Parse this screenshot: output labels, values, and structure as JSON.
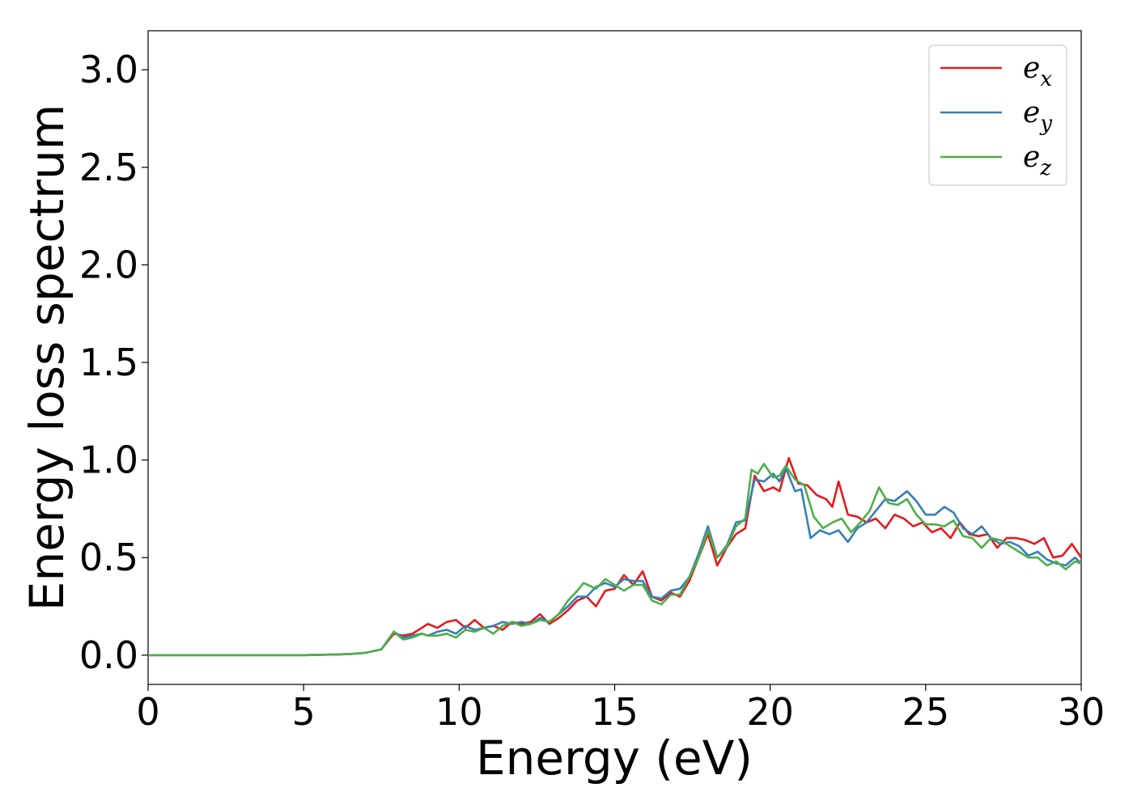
{
  "chart_data": {
    "type": "line",
    "title": "",
    "xlabel": "Energy (eV)",
    "ylabel": "Energy loss spectrum",
    "xlim": [
      0,
      30
    ],
    "ylim": [
      -0.15,
      3.2
    ],
    "xticks": [
      0,
      5,
      10,
      15,
      20,
      25,
      30
    ],
    "xtick_labels": [
      "0",
      "5",
      "10",
      "15",
      "20",
      "25",
      "30"
    ],
    "yticks": [
      0.0,
      0.5,
      1.0,
      1.5,
      2.0,
      2.5,
      3.0
    ],
    "ytick_labels": [
      "0.0",
      "0.5",
      "1.0",
      "1.5",
      "2.0",
      "2.5",
      "3.0"
    ],
    "grid": false,
    "legend_position": "top-right",
    "series": [
      {
        "name": "e_x",
        "label_base": "e",
        "label_sub": "x",
        "color": "#e41a1c",
        "points": [
          [
            0,
            0
          ],
          [
            5,
            0
          ],
          [
            6,
            0.003
          ],
          [
            6.5,
            0.006
          ],
          [
            7,
            0.012
          ],
          [
            7.5,
            0.03
          ],
          [
            7.9,
            0.11
          ],
          [
            8.2,
            0.1
          ],
          [
            8.5,
            0.11
          ],
          [
            8.8,
            0.14
          ],
          [
            9.0,
            0.16
          ],
          [
            9.3,
            0.14
          ],
          [
            9.6,
            0.17
          ],
          [
            9.9,
            0.18
          ],
          [
            10.2,
            0.14
          ],
          [
            10.5,
            0.18
          ],
          [
            10.8,
            0.14
          ],
          [
            11.1,
            0.15
          ],
          [
            11.4,
            0.13
          ],
          [
            11.7,
            0.17
          ],
          [
            12.0,
            0.16
          ],
          [
            12.3,
            0.17
          ],
          [
            12.6,
            0.21
          ],
          [
            12.9,
            0.16
          ],
          [
            13.2,
            0.19
          ],
          [
            13.5,
            0.23
          ],
          [
            13.8,
            0.28
          ],
          [
            14.1,
            0.3
          ],
          [
            14.4,
            0.25
          ],
          [
            14.7,
            0.33
          ],
          [
            15.0,
            0.34
          ],
          [
            15.3,
            0.41
          ],
          [
            15.6,
            0.36
          ],
          [
            15.9,
            0.43
          ],
          [
            16.2,
            0.3
          ],
          [
            16.5,
            0.28
          ],
          [
            16.8,
            0.32
          ],
          [
            17.1,
            0.3
          ],
          [
            17.4,
            0.38
          ],
          [
            17.7,
            0.5
          ],
          [
            18.0,
            0.62
          ],
          [
            18.3,
            0.46
          ],
          [
            18.6,
            0.55
          ],
          [
            18.9,
            0.62
          ],
          [
            19.2,
            0.65
          ],
          [
            19.5,
            0.92
          ],
          [
            19.8,
            0.84
          ],
          [
            20.1,
            0.86
          ],
          [
            20.3,
            0.84
          ],
          [
            20.6,
            1.01
          ],
          [
            20.9,
            0.88
          ],
          [
            21.2,
            0.87
          ],
          [
            21.5,
            0.82
          ],
          [
            21.8,
            0.8
          ],
          [
            22.0,
            0.76
          ],
          [
            22.2,
            0.89
          ],
          [
            22.5,
            0.72
          ],
          [
            22.8,
            0.71
          ],
          [
            23.1,
            0.68
          ],
          [
            23.4,
            0.7
          ],
          [
            23.7,
            0.65
          ],
          [
            24.0,
            0.72
          ],
          [
            24.3,
            0.7
          ],
          [
            24.6,
            0.66
          ],
          [
            24.9,
            0.68
          ],
          [
            25.2,
            0.63
          ],
          [
            25.5,
            0.65
          ],
          [
            25.8,
            0.6
          ],
          [
            26.1,
            0.68
          ],
          [
            26.4,
            0.62
          ],
          [
            26.7,
            0.61
          ],
          [
            27.0,
            0.62
          ],
          [
            27.3,
            0.55
          ],
          [
            27.6,
            0.6
          ],
          [
            27.9,
            0.6
          ],
          [
            28.2,
            0.59
          ],
          [
            28.5,
            0.57
          ],
          [
            28.8,
            0.6
          ],
          [
            29.1,
            0.5
          ],
          [
            29.4,
            0.51
          ],
          [
            29.7,
            0.57
          ],
          [
            30.0,
            0.5
          ]
        ]
      },
      {
        "name": "e_y",
        "label_base": "e",
        "label_sub": "y",
        "color": "#377eb8",
        "points": [
          [
            0,
            0
          ],
          [
            5,
            0
          ],
          [
            6,
            0.003
          ],
          [
            6.5,
            0.006
          ],
          [
            7,
            0.012
          ],
          [
            7.5,
            0.03
          ],
          [
            7.9,
            0.12
          ],
          [
            8.2,
            0.09
          ],
          [
            8.5,
            0.1
          ],
          [
            8.8,
            0.11
          ],
          [
            9.0,
            0.1
          ],
          [
            9.3,
            0.12
          ],
          [
            9.6,
            0.13
          ],
          [
            9.9,
            0.11
          ],
          [
            10.2,
            0.15
          ],
          [
            10.5,
            0.13
          ],
          [
            10.8,
            0.14
          ],
          [
            11.1,
            0.15
          ],
          [
            11.4,
            0.17
          ],
          [
            11.7,
            0.16
          ],
          [
            12.0,
            0.17
          ],
          [
            12.3,
            0.16
          ],
          [
            12.6,
            0.19
          ],
          [
            12.9,
            0.17
          ],
          [
            13.2,
            0.21
          ],
          [
            13.5,
            0.25
          ],
          [
            13.8,
            0.3
          ],
          [
            14.1,
            0.3
          ],
          [
            14.4,
            0.35
          ],
          [
            14.7,
            0.37
          ],
          [
            15.0,
            0.35
          ],
          [
            15.3,
            0.39
          ],
          [
            15.6,
            0.38
          ],
          [
            15.9,
            0.38
          ],
          [
            16.2,
            0.3
          ],
          [
            16.5,
            0.29
          ],
          [
            16.8,
            0.33
          ],
          [
            17.1,
            0.34
          ],
          [
            17.4,
            0.4
          ],
          [
            17.7,
            0.52
          ],
          [
            18.0,
            0.66
          ],
          [
            18.3,
            0.5
          ],
          [
            18.6,
            0.56
          ],
          [
            18.9,
            0.68
          ],
          [
            19.2,
            0.69
          ],
          [
            19.5,
            0.9
          ],
          [
            19.8,
            0.89
          ],
          [
            20.1,
            0.93
          ],
          [
            20.3,
            0.89
          ],
          [
            20.5,
            0.96
          ],
          [
            20.8,
            0.84
          ],
          [
            21.0,
            0.85
          ],
          [
            21.3,
            0.6
          ],
          [
            21.6,
            0.64
          ],
          [
            21.9,
            0.62
          ],
          [
            22.2,
            0.64
          ],
          [
            22.5,
            0.58
          ],
          [
            22.8,
            0.65
          ],
          [
            23.1,
            0.68
          ],
          [
            23.4,
            0.74
          ],
          [
            23.7,
            0.8
          ],
          [
            24.0,
            0.79
          ],
          [
            24.4,
            0.84
          ],
          [
            24.7,
            0.79
          ],
          [
            25.0,
            0.72
          ],
          [
            25.3,
            0.72
          ],
          [
            25.6,
            0.76
          ],
          [
            25.9,
            0.73
          ],
          [
            26.2,
            0.65
          ],
          [
            26.5,
            0.62
          ],
          [
            26.8,
            0.66
          ],
          [
            27.1,
            0.6
          ],
          [
            27.4,
            0.57
          ],
          [
            27.7,
            0.58
          ],
          [
            28.0,
            0.56
          ],
          [
            28.3,
            0.51
          ],
          [
            28.6,
            0.53
          ],
          [
            28.9,
            0.49
          ],
          [
            29.2,
            0.47
          ],
          [
            29.5,
            0.46
          ],
          [
            29.8,
            0.5
          ],
          [
            30.0,
            0.47
          ]
        ]
      },
      {
        "name": "e_z",
        "label_base": "e",
        "label_sub": "z",
        "color": "#4daf4a",
        "points": [
          [
            0,
            0
          ],
          [
            5,
            0
          ],
          [
            6,
            0.003
          ],
          [
            6.5,
            0.006
          ],
          [
            7,
            0.012
          ],
          [
            7.5,
            0.03
          ],
          [
            7.9,
            0.12
          ],
          [
            8.2,
            0.08
          ],
          [
            8.5,
            0.09
          ],
          [
            8.8,
            0.11
          ],
          [
            9.0,
            0.1
          ],
          [
            9.3,
            0.1
          ],
          [
            9.6,
            0.11
          ],
          [
            9.9,
            0.09
          ],
          [
            10.2,
            0.13
          ],
          [
            10.5,
            0.12
          ],
          [
            10.8,
            0.14
          ],
          [
            11.1,
            0.11
          ],
          [
            11.4,
            0.15
          ],
          [
            11.7,
            0.17
          ],
          [
            12.0,
            0.15
          ],
          [
            12.3,
            0.16
          ],
          [
            12.6,
            0.18
          ],
          [
            12.9,
            0.17
          ],
          [
            13.2,
            0.21
          ],
          [
            13.5,
            0.28
          ],
          [
            13.8,
            0.33
          ],
          [
            14.0,
            0.37
          ],
          [
            14.4,
            0.34
          ],
          [
            14.7,
            0.39
          ],
          [
            15.0,
            0.36
          ],
          [
            15.3,
            0.33
          ],
          [
            15.6,
            0.36
          ],
          [
            15.9,
            0.36
          ],
          [
            16.2,
            0.28
          ],
          [
            16.5,
            0.26
          ],
          [
            16.8,
            0.31
          ],
          [
            17.1,
            0.31
          ],
          [
            17.4,
            0.4
          ],
          [
            17.7,
            0.5
          ],
          [
            18.0,
            0.64
          ],
          [
            18.3,
            0.5
          ],
          [
            18.6,
            0.55
          ],
          [
            18.9,
            0.66
          ],
          [
            19.2,
            0.7
          ],
          [
            19.4,
            0.95
          ],
          [
            19.6,
            0.93
          ],
          [
            19.8,
            0.98
          ],
          [
            20.1,
            0.91
          ],
          [
            20.3,
            0.92
          ],
          [
            20.5,
            0.97
          ],
          [
            20.8,
            0.9
          ],
          [
            21.1,
            0.87
          ],
          [
            21.4,
            0.71
          ],
          [
            21.7,
            0.65
          ],
          [
            22.0,
            0.68
          ],
          [
            22.3,
            0.7
          ],
          [
            22.6,
            0.63
          ],
          [
            22.9,
            0.68
          ],
          [
            23.2,
            0.74
          ],
          [
            23.5,
            0.86
          ],
          [
            23.8,
            0.78
          ],
          [
            24.1,
            0.77
          ],
          [
            24.4,
            0.8
          ],
          [
            24.7,
            0.72
          ],
          [
            25.0,
            0.67
          ],
          [
            25.3,
            0.67
          ],
          [
            25.6,
            0.66
          ],
          [
            25.9,
            0.69
          ],
          [
            26.2,
            0.61
          ],
          [
            26.5,
            0.6
          ],
          [
            26.8,
            0.55
          ],
          [
            27.1,
            0.6
          ],
          [
            27.4,
            0.59
          ],
          [
            27.7,
            0.56
          ],
          [
            28.0,
            0.53
          ],
          [
            28.3,
            0.5
          ],
          [
            28.6,
            0.5
          ],
          [
            28.9,
            0.46
          ],
          [
            29.2,
            0.48
          ],
          [
            29.5,
            0.44
          ],
          [
            29.8,
            0.48
          ],
          [
            30.0,
            0.47
          ]
        ]
      }
    ]
  }
}
